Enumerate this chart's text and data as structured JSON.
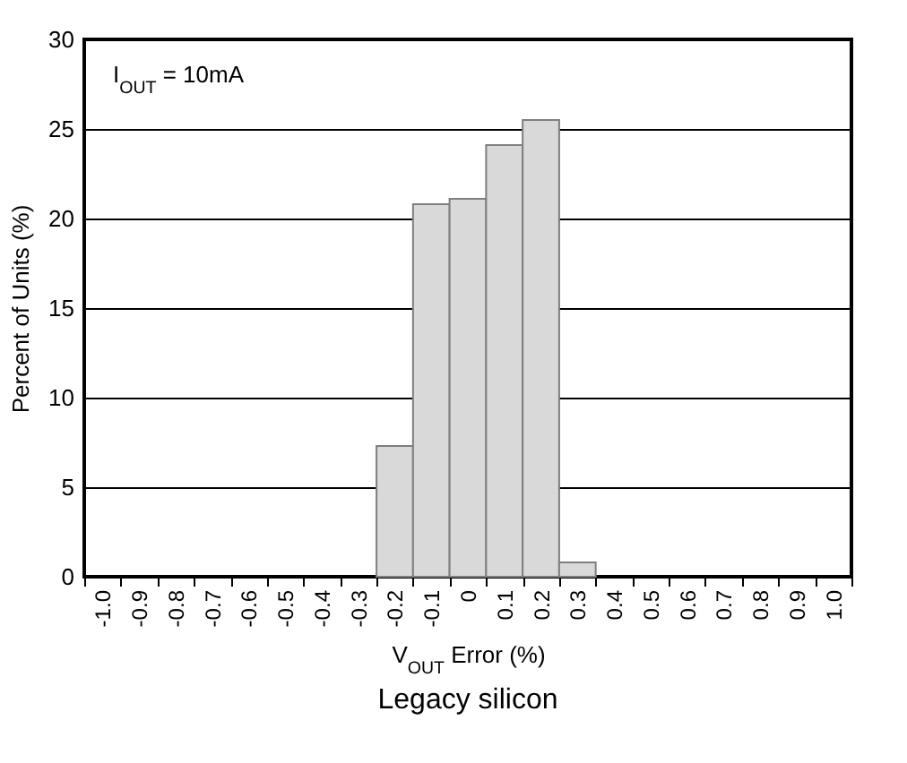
{
  "chart_data": {
    "type": "bar",
    "title": "Legacy silicon",
    "xlabel": "V$_{OUT}$ Error (%)",
    "ylabel": "Percent of Units (%)",
    "annotations": [
      "I$_{OUT}$ = 10mA"
    ],
    "categories": [
      "-1.0",
      "-0.9",
      "-0.8",
      "-0.7",
      "-0.6",
      "-0.5",
      "-0.4",
      "-0.3",
      "-0.2",
      "-0.1",
      "0",
      "0.1",
      "0.2",
      "0.3",
      "0.4",
      "0.5",
      "0.6",
      "0.7",
      "0.8",
      "0.9",
      "1.0"
    ],
    "values": [
      0,
      0,
      0,
      0,
      0,
      0,
      0,
      0,
      7.3,
      20.8,
      21.1,
      24.1,
      25.5,
      0.8,
      0,
      0,
      0,
      0,
      0,
      0,
      0
    ],
    "color": "#d9d9d9",
    "ylim": [
      0,
      30
    ],
    "yticks": [
      0,
      5,
      10,
      15,
      20,
      25,
      30
    ],
    "grid": "y"
  }
}
